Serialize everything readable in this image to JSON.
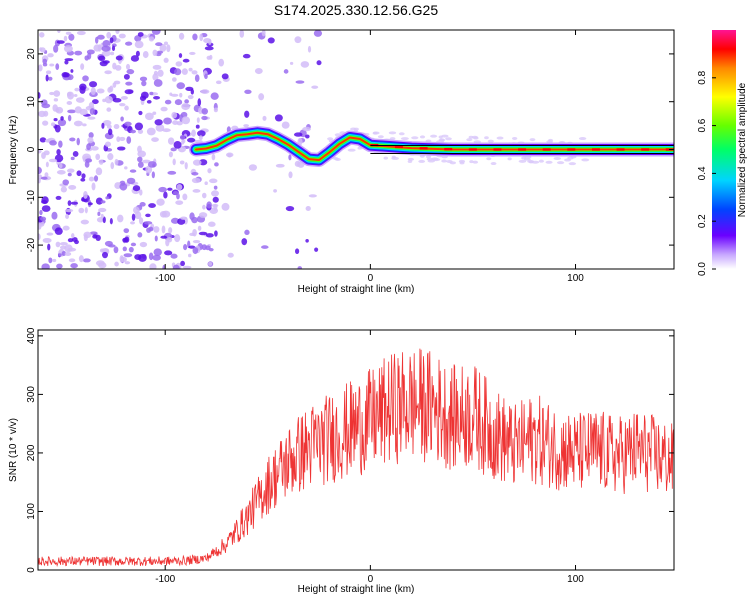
{
  "title": "S174.2025.330.12.56.G25",
  "chart_data": [
    {
      "type": "heatmap",
      "name": "spectrogram",
      "xlabel": "Height of straight line (km)",
      "ylabel": "Frequency (Hz)",
      "xlim": [
        -162,
        148
      ],
      "ylim": [
        -25,
        25
      ],
      "xticks": [
        -100,
        0,
        100
      ],
      "yticks": [
        -20,
        -10,
        0,
        10,
        20
      ],
      "xtick_labels": [
        "-100",
        "0",
        "100"
      ],
      "ytick_labels": [
        "-20",
        "-10",
        "0",
        "10",
        "20"
      ],
      "colorbar": {
        "label": "Normalized spectral amplitude",
        "range": [
          0,
          1
        ],
        "ticks": [
          0,
          0.2,
          0.4,
          0.6,
          0.8
        ],
        "tick_labels": [
          "0.0",
          "0.2",
          "0.4",
          "0.6",
          "0.8"
        ]
      },
      "ridge": {
        "x": [
          -85,
          -80,
          -75,
          -70,
          -65,
          -60,
          -55,
          -50,
          -45,
          -40,
          -35,
          -30,
          -25,
          -20,
          -15,
          -10,
          -5,
          0,
          10,
          20,
          40,
          60,
          80,
          100,
          120,
          148
        ],
        "y": [
          0,
          0.2,
          0.8,
          2,
          3,
          3.2,
          3.5,
          3.2,
          2.2,
          1,
          -0.5,
          -2,
          -2.2,
          -0.6,
          1.2,
          2.5,
          2.2,
          0.9,
          0.6,
          0.3,
          0,
          0,
          0,
          0,
          0,
          0
        ]
      },
      "noise_region_x": [
        -162,
        -75
      ]
    },
    {
      "type": "line",
      "name": "snr",
      "xlabel": "Height of straight line (km)",
      "ylabel": "SNR (10 * v/v)",
      "xlim": [
        -162,
        148
      ],
      "ylim": [
        0,
        410
      ],
      "xticks": [
        -100,
        0,
        100
      ],
      "yticks": [
        0,
        100,
        200,
        300,
        400
      ],
      "xtick_labels": [
        "-100",
        "0",
        "100"
      ],
      "ytick_labels": [
        "0",
        "100",
        "200",
        "300",
        "400"
      ],
      "color": "#ee3333",
      "envelope": {
        "x": [
          -162,
          -140,
          -120,
          -100,
          -90,
          -80,
          -70,
          -60,
          -50,
          -40,
          -30,
          -20,
          -10,
          0,
          10,
          20,
          30,
          40,
          50,
          60,
          70,
          80,
          90,
          100,
          110,
          120,
          130,
          140,
          148
        ],
        "y": [
          15,
          15,
          15,
          15,
          16,
          20,
          45,
          90,
          145,
          185,
          210,
          225,
          240,
          255,
          275,
          285,
          280,
          260,
          265,
          235,
          210,
          225,
          210,
          200,
          205,
          195,
          205,
          195,
          185
        ]
      },
      "noise_amplitude": 25,
      "samples": 1100
    }
  ]
}
